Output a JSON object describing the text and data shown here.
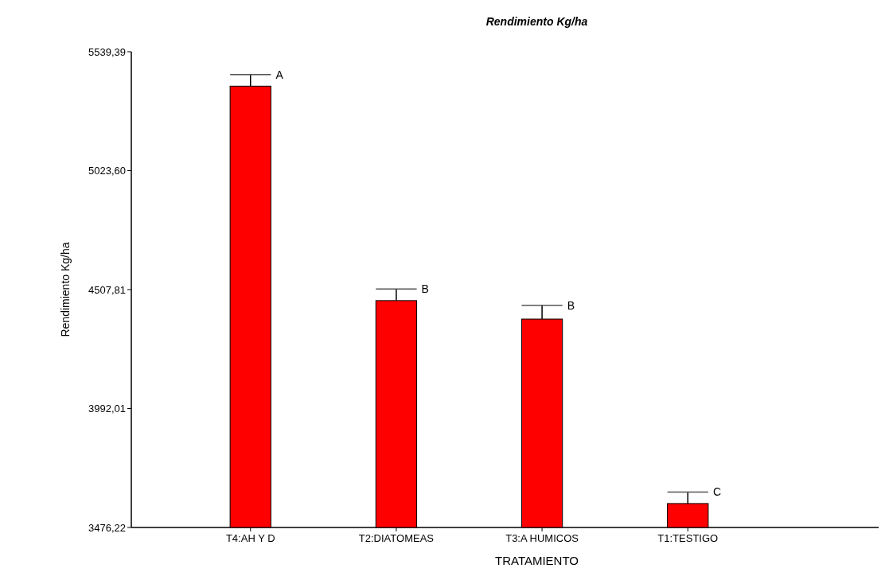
{
  "chart_data": {
    "type": "bar",
    "title": "Rendimiento Kg/ha",
    "xlabel": "TRATAMIENTO",
    "ylabel": "Rendimiento Kg/ha",
    "categories": [
      "T4:AH Y D",
      "T2:DIATOMEAS",
      "T3:A HUMICOS",
      "T1:TESTIGO"
    ],
    "values": [
      5390,
      4460,
      4380,
      3580
    ],
    "errors": [
      [
        5390,
        5440
      ],
      [
        4460,
        4510
      ],
      [
        4380,
        4440
      ],
      [
        3580,
        3630
      ]
    ],
    "color": "#ff0000",
    "ylim": [
      3476.22,
      5539.39
    ],
    "yticks": [
      {
        "value": 3476.22,
        "label": "3476,22"
      },
      {
        "value": 3992.01,
        "label": "3992,01"
      },
      {
        "value": 4507.81,
        "label": "4507,81"
      },
      {
        "value": 5023.6,
        "label": "5023,60"
      },
      {
        "value": 5539.39,
        "label": "5539,39"
      }
    ],
    "grid": false,
    "annotations": [
      {
        "text": "A",
        "x": "T4:AH Y D",
        "y": 5440
      },
      {
        "text": "B",
        "x": "T2:DIATOMEAS",
        "y": 4510
      },
      {
        "text": "B",
        "x": "T3:A HUMICOS",
        "y": 4440
      },
      {
        "text": "C",
        "x": "T1:TESTIGO",
        "y": 3630
      }
    ]
  }
}
